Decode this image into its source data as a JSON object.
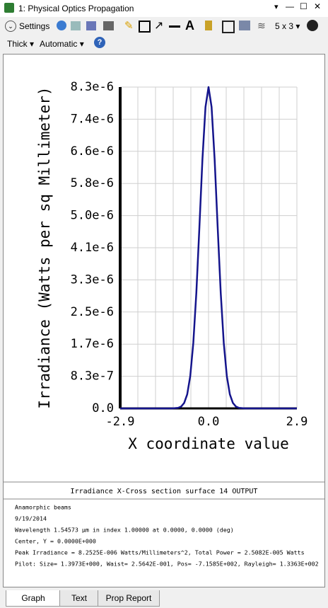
{
  "window": {
    "title": "1: Physical Optics Propagation"
  },
  "toolbar": {
    "settings": "Settings",
    "layout": "5 x 3",
    "line_width": "Thick",
    "scale": "Automatic"
  },
  "chart_data": {
    "type": "line",
    "ylabel": "Irradiance (Watts per sq Millimeter)",
    "xlabel": "X coordinate value",
    "x": [
      -2.9,
      -1.2,
      -1.0,
      -0.9,
      -0.8,
      -0.7,
      -0.6,
      -0.5,
      -0.4,
      -0.3,
      -0.2,
      -0.1,
      0,
      0.1,
      0.2,
      0.3,
      0.4,
      0.5,
      0.6,
      0.7,
      0.8,
      0.9,
      1.0,
      1.2,
      2.9
    ],
    "series": [
      {
        "color": "#14148c",
        "values": [
          0,
          0,
          1.4e-08,
          4.7e-08,
          1.4e-07,
          3.6e-07,
          8.3e-07,
          1.68e-06,
          2.97e-06,
          4.65e-06,
          6.4e-06,
          7.74e-06,
          8.2525e-06,
          7.74e-06,
          6.4e-06,
          4.65e-06,
          2.97e-06,
          1.68e-06,
          8.3e-07,
          3.6e-07,
          1.4e-07,
          4.7e-08,
          1.4e-08,
          0,
          0
        ]
      }
    ],
    "xlim": [
      -2.9,
      2.9
    ],
    "ylim": [
      0,
      8.2525e-06
    ],
    "xticks": [
      -2.9,
      {
        "value": 0,
        "label": "0.0"
      },
      2.9
    ],
    "x_grid": [
      -2.32,
      -1.74,
      -1.16,
      -0.58,
      0.58,
      1.16,
      1.74,
      2.32
    ],
    "yticks": [
      {
        "value": 0,
        "label": "0.0"
      },
      {
        "value": 8.2525e-07,
        "label": "8.3e-7"
      },
      {
        "value": 1.6505e-06,
        "label": "1.7e-6"
      },
      {
        "value": 2.47575e-06,
        "label": "2.5e-6"
      },
      {
        "value": 3.301e-06,
        "label": "3.3e-6"
      },
      {
        "value": 4.12625e-06,
        "label": "4.1e-6"
      },
      {
        "value": 4.9515e-06,
        "label": "5.0e-6"
      },
      {
        "value": 5.77675e-06,
        "label": "5.8e-6"
      },
      {
        "value": 6.602e-06,
        "label": "6.6e-6"
      },
      {
        "value": 7.42725e-06,
        "label": "7.4e-6"
      },
      {
        "value": 8.2525e-06,
        "label": "8.3e-6"
      }
    ],
    "grid": true
  },
  "caption": "Irradiance X-Cross section surface 14 OUTPUT",
  "info": [
    "Anamorphic beams",
    "9/19/2014",
    "Wavelength 1.54573 µm in index 1.00000 at 0.0000, 0.0000 (deg)",
    "Center, Y = 0.0000E+000",
    "Peak Irradiance = 8.2525E-006 Watts/Millimeters^2, Total Power = 2.5082E-005 Watts",
    "Pilot: Size= 1.3973E+000, Waist= 2.5642E-001, Pos= -7.1585E+002, Rayleigh= 1.3363E+002"
  ],
  "tabs": [
    "Graph",
    "Text",
    "Prop Report"
  ]
}
